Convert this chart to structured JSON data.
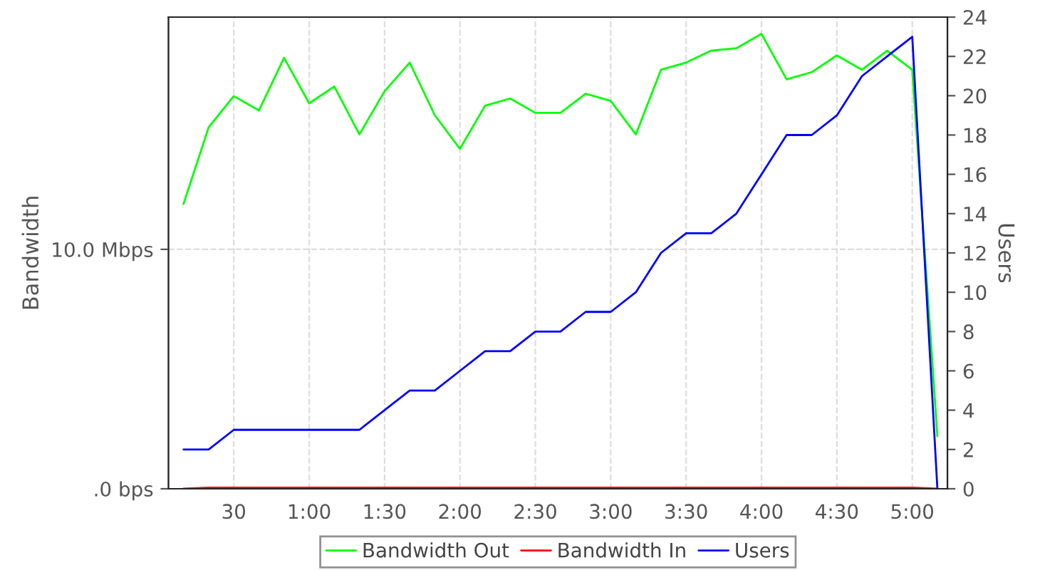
{
  "chart_data": {
    "type": "line",
    "x": [
      10,
      20,
      30,
      40,
      50,
      60,
      70,
      80,
      90,
      100,
      110,
      120,
      130,
      140,
      150,
      160,
      170,
      180,
      190,
      200,
      210,
      220,
      230,
      240,
      250,
      260,
      270,
      280,
      290,
      300,
      310
    ],
    "series": [
      {
        "name": "Bandwidth Out",
        "color": "#00ff00",
        "values": [
          11.9,
          15.1,
          16.4,
          15.8,
          18.0,
          16.1,
          16.8,
          14.8,
          16.6,
          17.8,
          15.6,
          14.2,
          16.0,
          16.3,
          15.7,
          15.7,
          16.5,
          16.2,
          14.8,
          17.5,
          17.8,
          18.3,
          18.4,
          19.0,
          17.1,
          17.4,
          18.1,
          17.5,
          18.3,
          17.5,
          2.2
        ]
      },
      {
        "name": "Bandwidth In",
        "color": "#ff0000",
        "values": [
          0,
          0.05,
          0.05,
          0.05,
          0.05,
          0.05,
          0.05,
          0.05,
          0.05,
          0.05,
          0.05,
          0.05,
          0.05,
          0.05,
          0.05,
          0.05,
          0.05,
          0.05,
          0.05,
          0.05,
          0.05,
          0.05,
          0.05,
          0.05,
          0.05,
          0.05,
          0.05,
          0.05,
          0.05,
          0.05,
          0
        ]
      },
      {
        "name": "Users",
        "color": "#0000ff",
        "axis": "y2",
        "values": [
          2,
          2,
          3,
          3,
          3,
          3,
          3,
          3,
          4,
          5,
          5,
          6,
          7,
          7,
          8,
          8,
          9,
          9,
          10,
          12,
          13,
          13,
          14,
          16,
          18,
          18,
          19,
          21,
          22,
          23,
          0
        ]
      }
    ],
    "ylabel": "Bandwidth",
    "y2label": "Users",
    "xlim": [
      4,
      314
    ],
    "xticks": [
      {
        "value": 30,
        "label": "30"
      },
      {
        "value": 60,
        "label": "1:00"
      },
      {
        "value": 90,
        "label": "1:30"
      },
      {
        "value": 120,
        "label": "2:00"
      },
      {
        "value": 150,
        "label": "2:30"
      },
      {
        "value": 180,
        "label": "3:00"
      },
      {
        "value": 210,
        "label": "3:30"
      },
      {
        "value": 240,
        "label": "4:00"
      },
      {
        "value": 270,
        "label": "4:30"
      },
      {
        "value": 300,
        "label": "5:00"
      }
    ],
    "ylim": [
      0,
      19.7
    ],
    "yticks": [
      {
        "value": 0,
        "label": ".0 bps"
      },
      {
        "value": 10,
        "label": "10.0 Mbps"
      }
    ],
    "y2lim": [
      0,
      24
    ],
    "y2ticks": [
      0,
      2,
      4,
      6,
      8,
      10,
      12,
      14,
      16,
      18,
      20,
      22,
      24
    ],
    "grid": true,
    "legend": "bottom",
    "marker": "none",
    "line_style": "solid"
  }
}
